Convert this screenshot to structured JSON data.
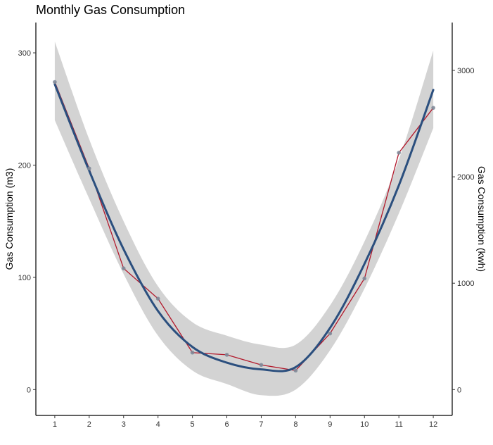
{
  "chart_data": {
    "type": "line",
    "title": "Monthly Gas Consumption",
    "xlabel": "",
    "ylabel": "Gas Consumption (m3)",
    "y2label": "Gas Consumption (kwh)",
    "x": [
      1,
      2,
      3,
      4,
      5,
      6,
      7,
      8,
      9,
      10,
      11,
      12
    ],
    "xlim": [
      0.45,
      12.55
    ],
    "ylim": [
      -23,
      327
    ],
    "yticks": [
      0,
      100,
      200,
      300
    ],
    "y2_factor": 10.55,
    "y2ticks": [
      0,
      1000,
      2000,
      3000
    ],
    "grid": false,
    "legend": "none",
    "series": [
      {
        "role": "observed",
        "values": [
          274,
          197,
          108,
          81,
          33,
          31,
          22,
          17,
          50,
          99,
          211,
          251
        ],
        "line_color": "#b2182b",
        "point_color": "#7f8a99"
      },
      {
        "role": "smooth",
        "values": [
          272,
          195,
          125,
          70,
          38,
          24,
          18,
          20,
          55,
          112,
          182,
          267
        ],
        "ci_low": [
          240,
          170,
          103,
          48,
          17,
          5,
          -5,
          0,
          35,
          90,
          157,
          233
        ],
        "ci_high": [
          310,
          223,
          150,
          92,
          60,
          48,
          40,
          40,
          75,
          132,
          205,
          302
        ],
        "line_color": "#2b4f7e",
        "ci_color": "#d3d3d3"
      }
    ]
  }
}
